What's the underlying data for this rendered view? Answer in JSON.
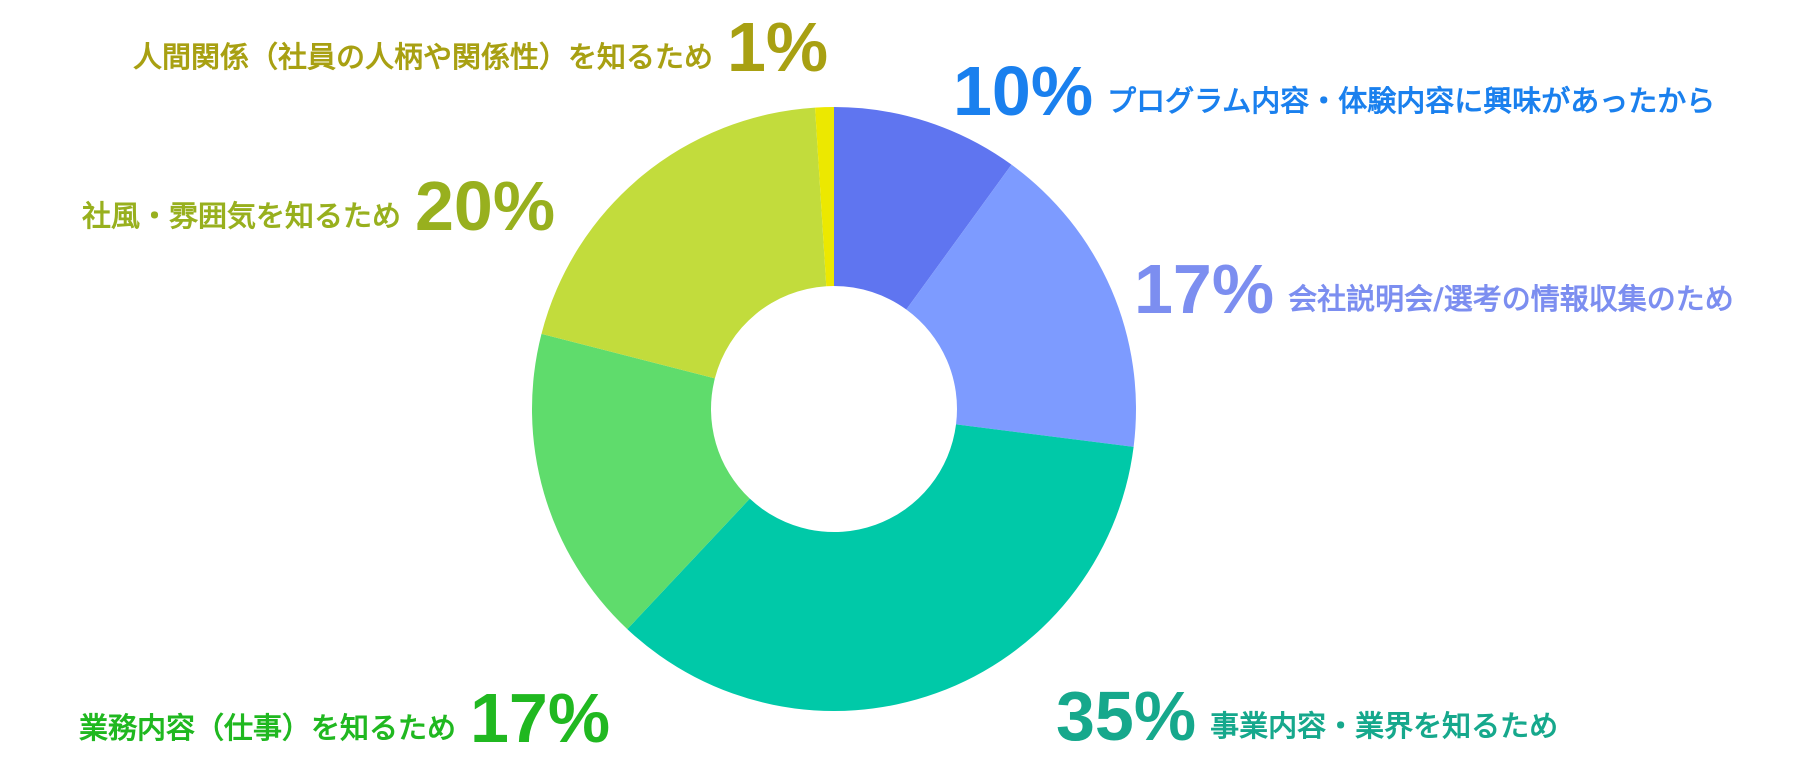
{
  "chart_data": {
    "type": "donut",
    "categories": [
      "プログラム内容・体験内容に興味があったから",
      "会社説明会/選考の情報収集のため",
      "事業内容・業界を知るため",
      "業務内容（仕事）を知るため",
      "社風・雰囲気を知るため",
      "人間関係（社員の人柄や関係性）を知るため"
    ],
    "values": [
      10,
      17,
      35,
      17,
      20,
      1
    ],
    "value_labels": [
      "10%",
      "17%",
      "35%",
      "17%",
      "20%",
      "1%"
    ],
    "colors": [
      "#5f75f0",
      "#7d9bff",
      "#00c9a8",
      "#5fdc6c",
      "#c2dc3c",
      "#ece800"
    ],
    "label_colors": [
      "#1a80ee",
      "#7c8ef0",
      "#16a88c",
      "#20b820",
      "#98b01e",
      "#a8a012"
    ]
  }
}
